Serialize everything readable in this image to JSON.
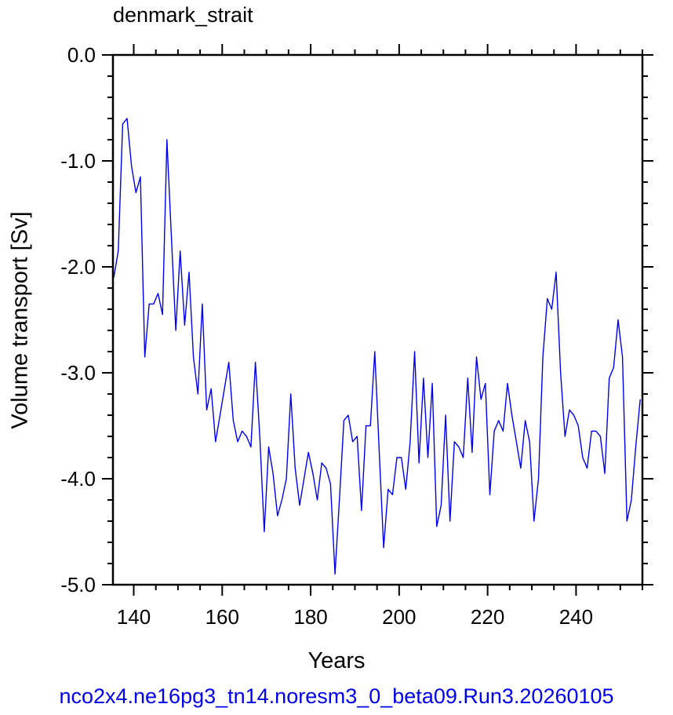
{
  "chart_data": {
    "type": "line",
    "title": "denmark_strait",
    "xlabel": "Years",
    "ylabel": "Volume transport [Sv]",
    "caption": "nco2x4.ne16pg3_tn14.noresm3_0_beta09.Run3.20260105",
    "xlim": [
      135.3,
      255
    ],
    "ylim": [
      -5.0,
      0.0
    ],
    "x_ticks": [
      140,
      160,
      180,
      200,
      220,
      240
    ],
    "y_ticks": [
      0.0,
      -1.0,
      -2.0,
      -3.0,
      -4.0,
      -5.0
    ],
    "y_tick_labels": [
      "0.0",
      "-1.0",
      "-2.0",
      "-3.0",
      "-4.0",
      "-5.0"
    ],
    "grid": false,
    "series": [
      {
        "color": "#0000ee",
        "x_start": 135.5,
        "x_step": 1,
        "values": [
          -2.1,
          -1.85,
          -0.65,
          -0.6,
          -1.05,
          -1.3,
          -1.15,
          -2.85,
          -2.35,
          -2.35,
          -2.25,
          -2.45,
          -0.8,
          -1.7,
          -2.6,
          -1.85,
          -2.55,
          -2.05,
          -2.85,
          -3.2,
          -2.35,
          -3.35,
          -3.15,
          -3.65,
          -3.4,
          -3.15,
          -2.9,
          -3.45,
          -3.65,
          -3.55,
          -3.6,
          -3.7,
          -2.9,
          -3.6,
          -4.5,
          -3.7,
          -3.95,
          -4.35,
          -4.2,
          -4.0,
          -3.2,
          -3.9,
          -4.25,
          -4.0,
          -3.75,
          -3.95,
          -4.2,
          -3.85,
          -3.9,
          -4.05,
          -4.9,
          -4.2,
          -3.45,
          -3.4,
          -3.65,
          -3.6,
          -4.3,
          -3.5,
          -3.5,
          -2.8,
          -3.75,
          -4.65,
          -4.1,
          -4.15,
          -3.8,
          -3.8,
          -4.1,
          -3.65,
          -2.8,
          -3.85,
          -3.05,
          -3.8,
          -3.1,
          -4.45,
          -4.25,
          -3.4,
          -4.4,
          -3.65,
          -3.7,
          -3.8,
          -3.05,
          -3.75,
          -2.85,
          -3.25,
          -3.1,
          -4.15,
          -3.55,
          -3.45,
          -3.55,
          -3.1,
          -3.4,
          -3.65,
          -3.9,
          -3.45,
          -3.65,
          -4.4,
          -4.0,
          -2.85,
          -2.3,
          -2.4,
          -2.05,
          -3.0,
          -3.6,
          -3.35,
          -3.4,
          -3.5,
          -3.8,
          -3.9,
          -3.55,
          -3.55,
          -3.6,
          -3.95,
          -3.05,
          -2.95,
          -2.5,
          -2.85,
          -4.4,
          -4.2,
          -3.7,
          -3.25
        ]
      }
    ]
  },
  "colors": {
    "line": "#0000ee",
    "caption": "#0000ee",
    "axis": "#000000"
  }
}
